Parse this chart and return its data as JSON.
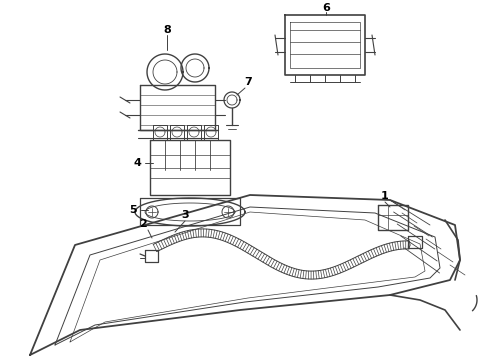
{
  "background_color": "#ffffff",
  "line_color": "#404040",
  "fig_width": 4.9,
  "fig_height": 3.6,
  "dpi": 100
}
